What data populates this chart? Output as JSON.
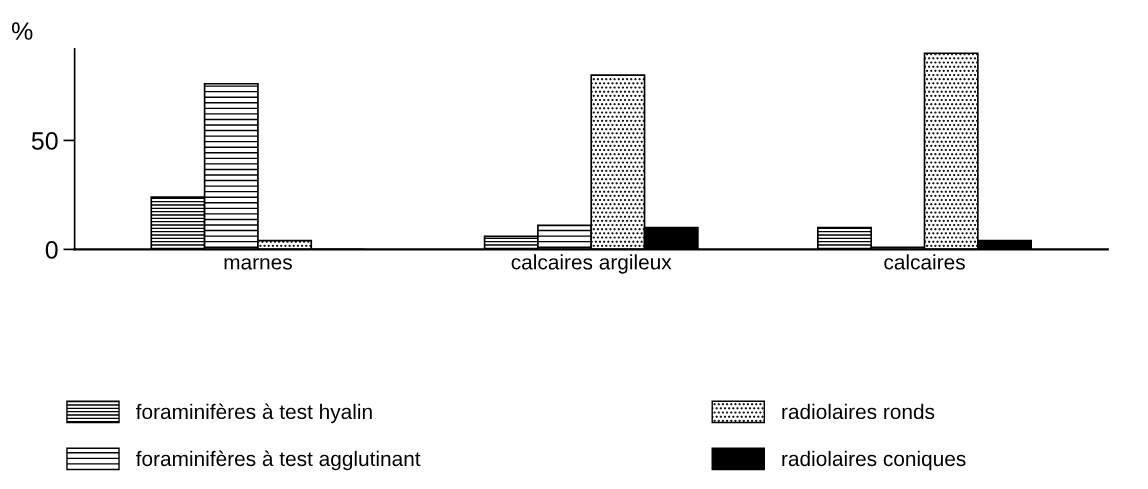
{
  "chart_data": {
    "type": "bar",
    "ylabel": "%",
    "categories": [
      "marnes",
      "calcaires argileux",
      "calcaires"
    ],
    "series": [
      {
        "name": "foraminifères à test hyalin",
        "color": "#000000",
        "values": [
          24,
          6,
          10
        ]
      },
      {
        "name": "foraminifères à test agglutinant",
        "color": "#000000",
        "values": [
          76,
          11,
          1
        ]
      },
      {
        "name": "radiolaires ronds",
        "color": "#000000",
        "values": [
          4,
          80,
          90
        ]
      },
      {
        "name": "radiolaires coniques",
        "color": "#000000",
        "values": [
          0,
          10,
          4
        ]
      }
    ],
    "ylim": [
      0,
      92
    ],
    "yticks": [
      0,
      50
    ],
    "grid": false,
    "legend": "bottom"
  }
}
